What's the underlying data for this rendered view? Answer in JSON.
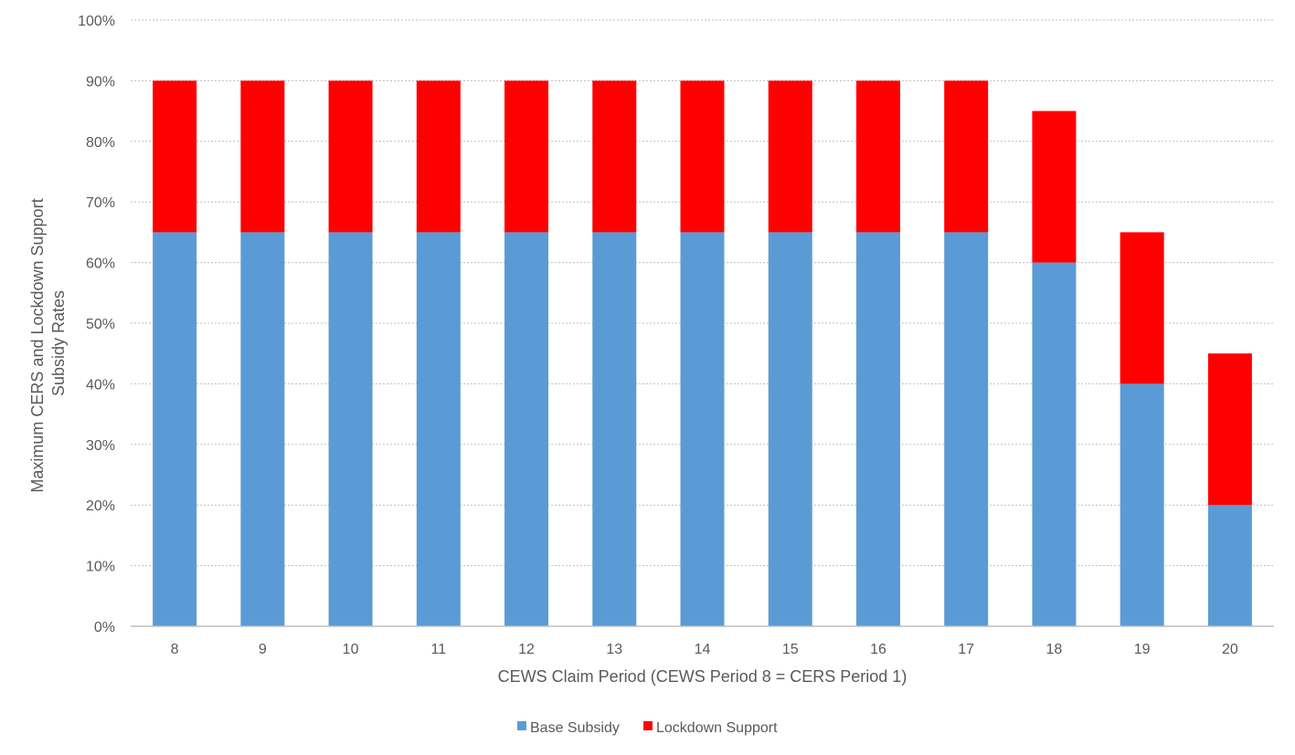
{
  "chart_data": {
    "type": "bar",
    "stacked": true,
    "categories": [
      "8",
      "9",
      "10",
      "11",
      "12",
      "13",
      "14",
      "15",
      "16",
      "17",
      "18",
      "19",
      "20"
    ],
    "series": [
      {
        "name": "Base Subsidy",
        "color": "#5B9BD5",
        "values": [
          65,
          65,
          65,
          65,
          65,
          65,
          65,
          65,
          65,
          65,
          60,
          40,
          20
        ]
      },
      {
        "name": "Lockdown Support",
        "color": "#FF0000",
        "values": [
          25,
          25,
          25,
          25,
          25,
          25,
          25,
          25,
          25,
          25,
          25,
          25,
          25
        ]
      }
    ],
    "xlabel": "CEWS Claim Period (CEWS Period 8 = CERS Period 1)",
    "ylabel_lines": [
      "Maximum CERS and Lockdown Support",
      "Subsidy Rates"
    ],
    "ylim": [
      0,
      100
    ],
    "yticks": [
      0,
      10,
      20,
      30,
      40,
      50,
      60,
      70,
      80,
      90,
      100
    ],
    "ytick_labels": [
      "0%",
      "10%",
      "20%",
      "30%",
      "40%",
      "50%",
      "60%",
      "70%",
      "80%",
      "90%",
      "100%"
    ],
    "grid": true,
    "legend_position": "bottom"
  }
}
